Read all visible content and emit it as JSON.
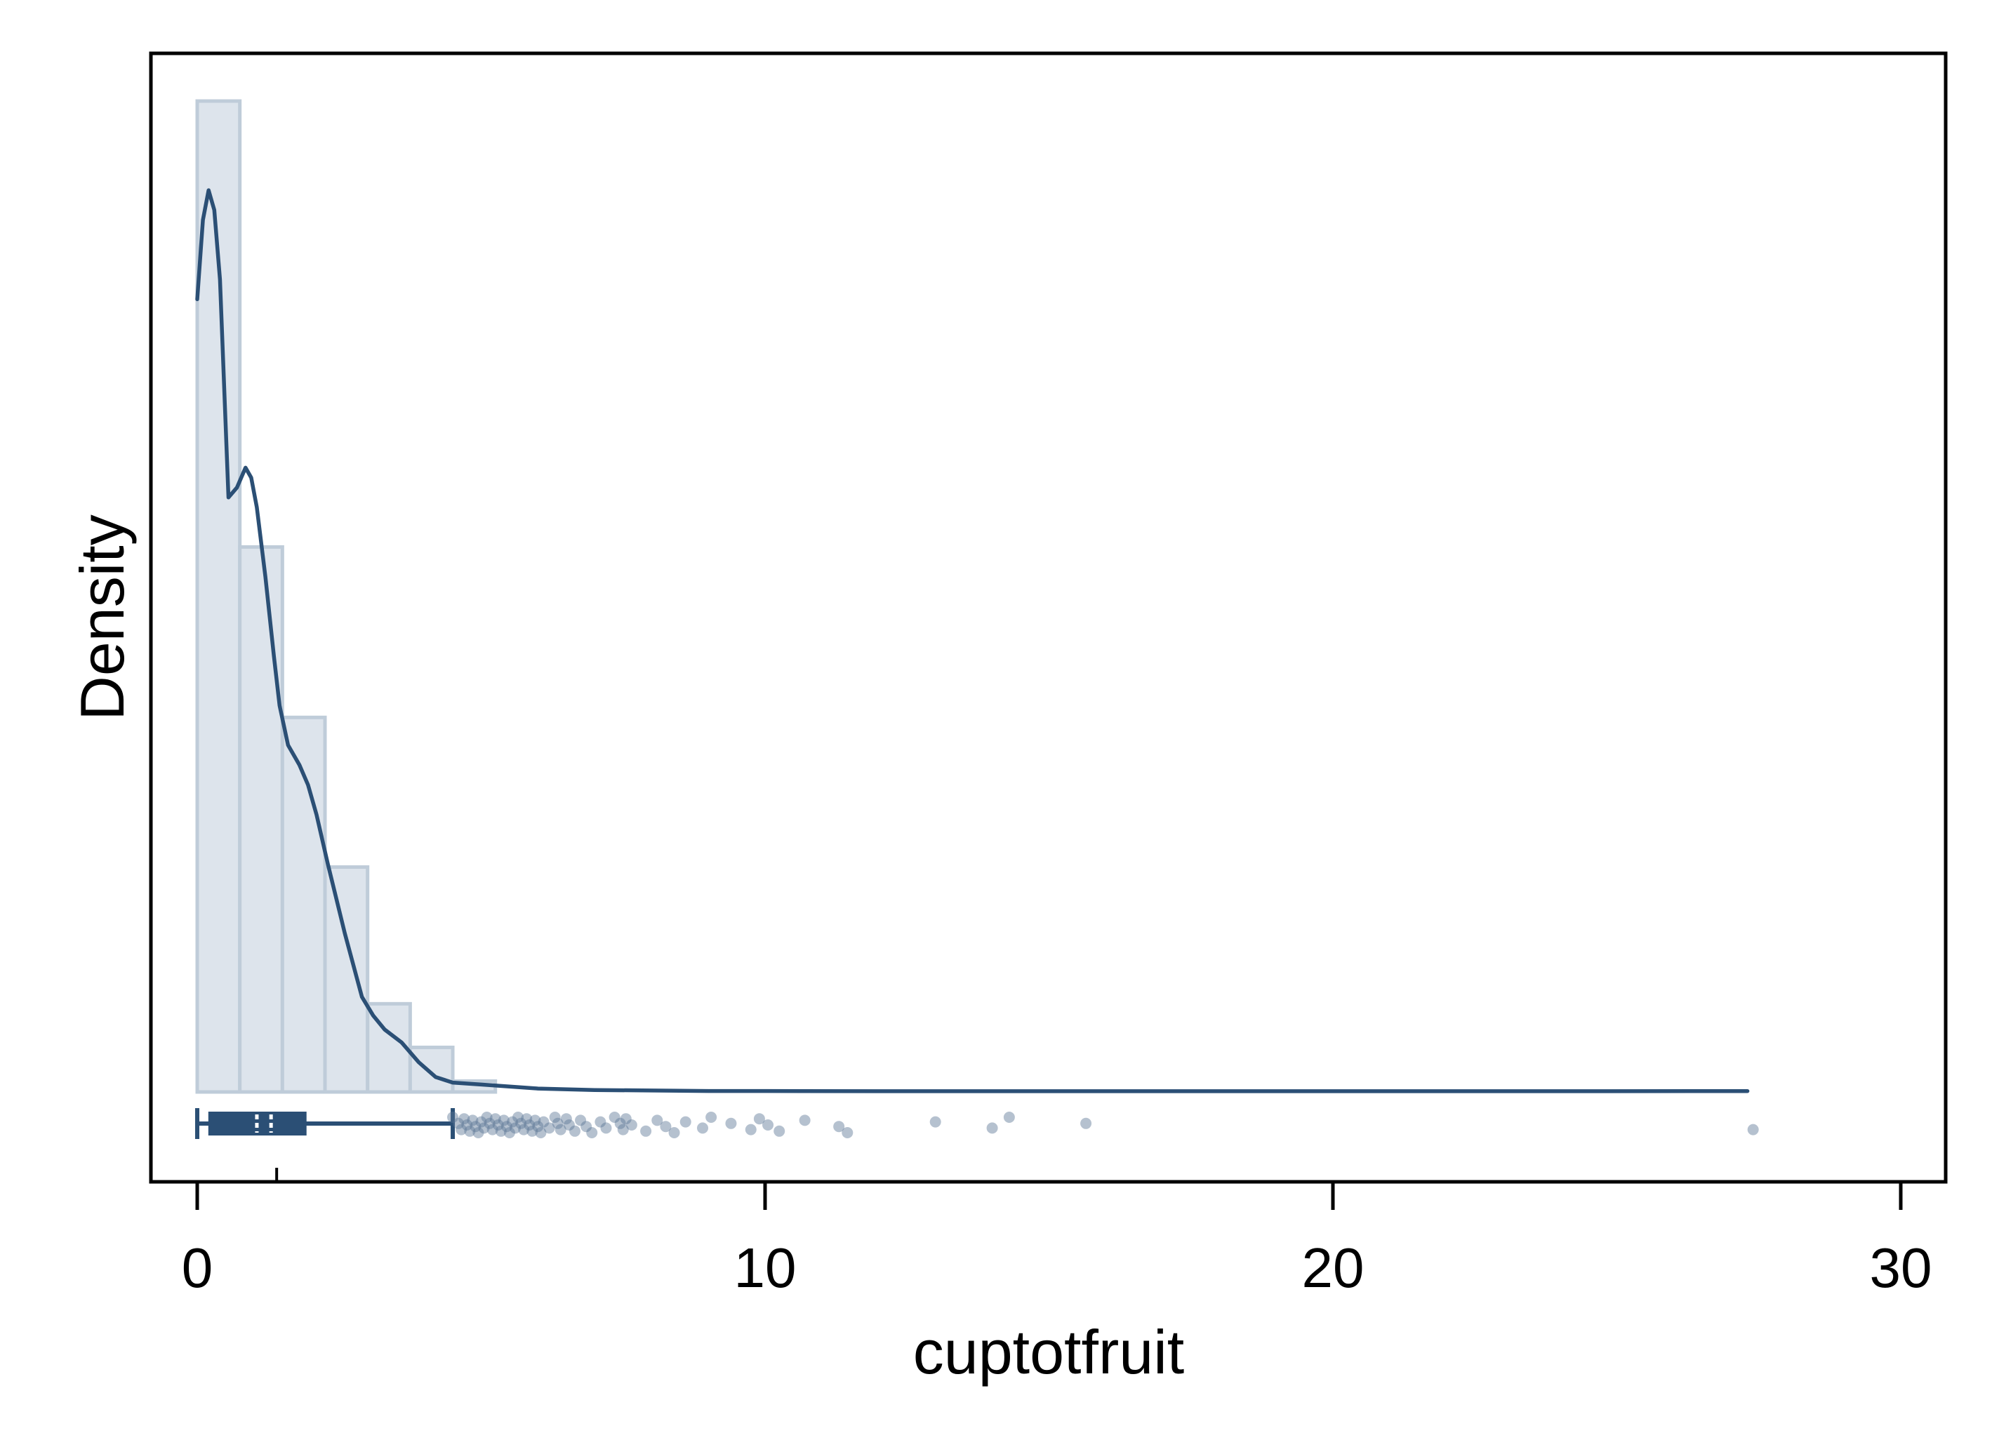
{
  "chart_data": {
    "type": "histogram",
    "title": "",
    "xlabel": "cuptotfruit",
    "ylabel": "Density",
    "xlim": [
      -0.8,
      30.8
    ],
    "x_ticks": [
      0,
      10,
      20,
      30
    ],
    "x_tick_labels": [
      "0",
      "10",
      "20",
      "30"
    ],
    "y_ticks_shown": false,
    "grid": false,
    "legend": "none",
    "colors": {
      "bar_fill": "#dde4ec",
      "bar_stroke": "#bfccd9",
      "line": "#2b4f75",
      "box": "#2b4f75",
      "points": "#5a7594"
    },
    "density_max": 1.0,
    "histogram": {
      "bin_edges": [
        0,
        0.75,
        1.5,
        2.25,
        3.0,
        3.75,
        4.5,
        5.25
      ],
      "heights": [
        1.0,
        0.55,
        0.378,
        0.227,
        0.089,
        0.045,
        0.011
      ]
    },
    "kde": {
      "x": [
        0,
        0.1,
        0.2,
        0.3,
        0.4,
        0.55,
        0.7,
        0.85,
        0.95,
        1.05,
        1.2,
        1.35,
        1.45,
        1.6,
        1.7,
        1.8,
        1.95,
        2.1,
        2.3,
        2.6,
        2.9,
        3.1,
        3.3,
        3.6,
        3.9,
        4.2,
        4.5,
        5.0,
        5.5,
        6.0,
        7.0,
        8.0,
        9.0,
        10.0,
        12.0,
        14.0,
        16.0,
        20.0,
        24.0,
        27.3
      ],
      "y": [
        0.8,
        0.88,
        0.91,
        0.89,
        0.82,
        0.6,
        0.61,
        0.63,
        0.62,
        0.59,
        0.52,
        0.44,
        0.39,
        0.35,
        0.34,
        0.33,
        0.31,
        0.28,
        0.23,
        0.16,
        0.096,
        0.077,
        0.063,
        0.05,
        0.03,
        0.015,
        0.0095,
        0.0075,
        0.0055,
        0.0035,
        0.002,
        0.0015,
        0.001,
        0.001,
        0.0008,
        0.0008,
        0.0008,
        0.0008,
        0.0008,
        0.0009
      ]
    },
    "boxplot": {
      "whisker_low": 0.0,
      "q1": 0.22,
      "median": 1.05,
      "q3": 1.9,
      "whisker_high": 4.5,
      "mean": 1.3
    },
    "outliers": [
      4.5,
      4.6,
      4.65,
      4.7,
      4.75,
      4.8,
      4.85,
      4.9,
      4.95,
      5.0,
      5.05,
      5.1,
      5.15,
      5.2,
      5.25,
      5.3,
      5.35,
      5.4,
      5.45,
      5.5,
      5.55,
      5.6,
      5.65,
      5.7,
      5.75,
      5.8,
      5.85,
      5.9,
      5.95,
      6.0,
      6.05,
      6.1,
      6.2,
      6.3,
      6.35,
      6.4,
      6.5,
      6.55,
      6.65,
      6.75,
      6.85,
      6.95,
      7.1,
      7.2,
      7.35,
      7.45,
      7.5,
      7.55,
      7.65,
      7.9,
      8.1,
      8.25,
      8.4,
      8.6,
      8.9,
      9.05,
      9.4,
      9.75,
      9.9,
      10.05,
      10.25,
      10.7,
      11.3,
      11.45,
      13.0,
      14.0,
      14.3,
      15.65,
      27.4
    ]
  }
}
